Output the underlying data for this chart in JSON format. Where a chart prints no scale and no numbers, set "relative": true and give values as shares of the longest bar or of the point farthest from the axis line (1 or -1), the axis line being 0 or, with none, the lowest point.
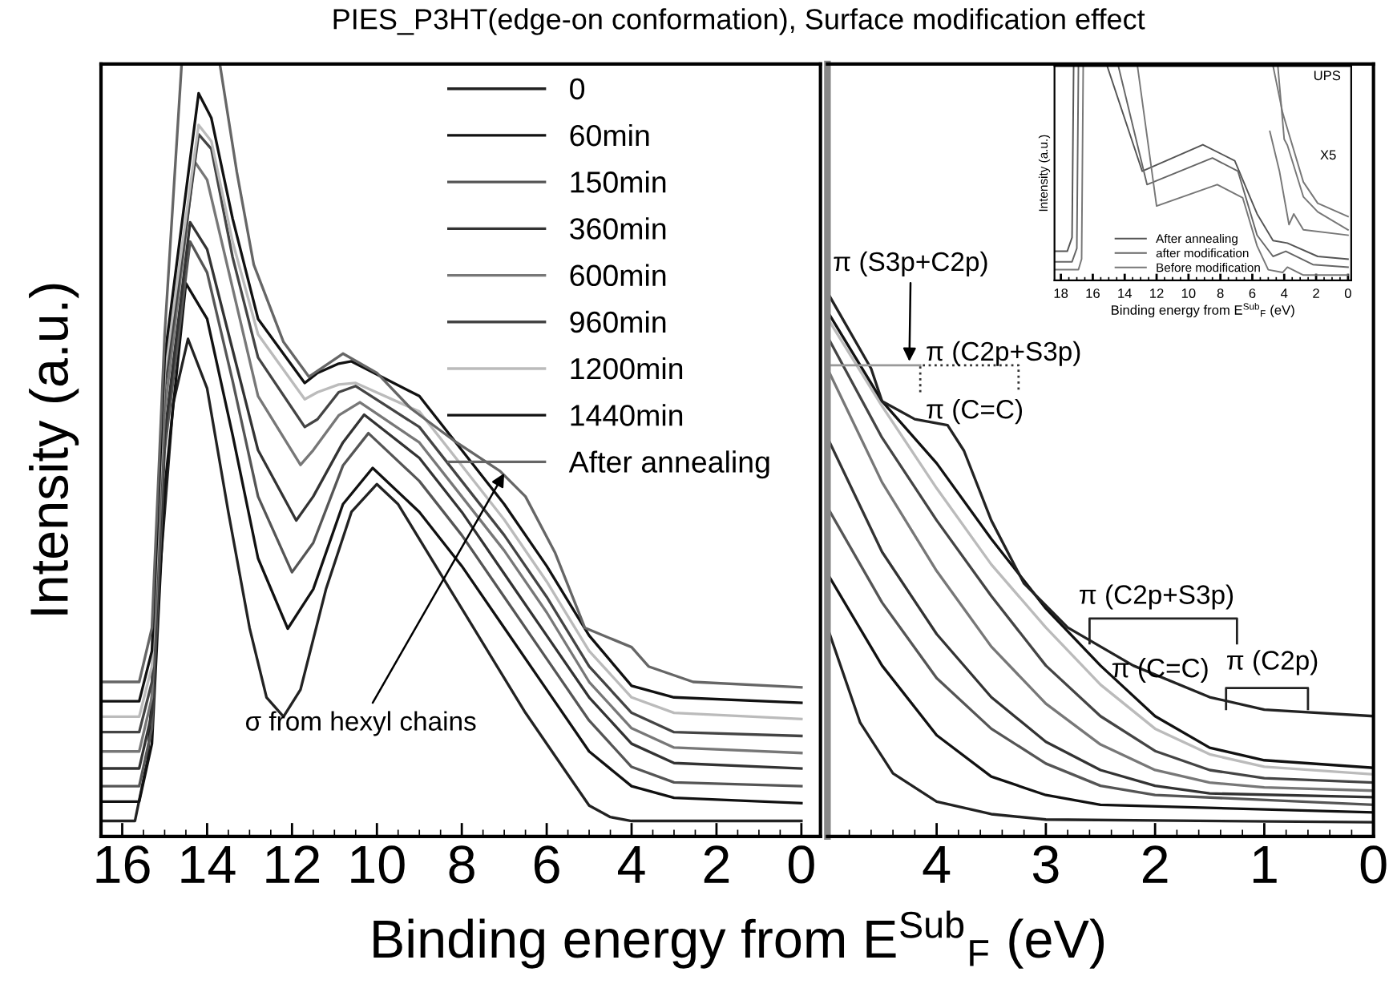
{
  "chart_data": [
    {
      "type": "line",
      "relative": true,
      "title": "PIES_P3HT(edge-on conformation), Surface modification effect",
      "xlabel": "Binding energy from E$^{Sub}$$_{F}$ (eV)",
      "ylabel": "Intensity (a.u.)",
      "xlim": [
        16.5,
        -0.45
      ],
      "xticks": [
        16,
        14,
        12,
        10,
        8,
        6,
        4,
        2,
        0
      ],
      "tick_labels": "x",
      "legend": "top right",
      "grid": false,
      "line_style": "solid",
      "marker": "none",
      "series": [
        {
          "name": "0",
          "color": "#222222",
          "x": [
            16.5,
            15.7,
            15.4,
            15.1,
            14.8,
            14.45,
            14.0,
            13.5,
            13.0,
            12.6,
            12.2,
            11.8,
            11.2,
            10.6,
            10.0,
            9.5,
            8.5,
            7.5,
            6.5,
            5.5,
            5.0,
            4.5,
            4.0,
            0
          ],
          "values": [
            0.02,
            0.02,
            0.1,
            0.35,
            0.56,
            0.644,
            0.58,
            0.42,
            0.27,
            0.18,
            0.155,
            0.19,
            0.32,
            0.42,
            0.456,
            0.43,
            0.34,
            0.25,
            0.16,
            0.08,
            0.04,
            0.025,
            0.02,
            0.02
          ]
        },
        {
          "name": "60min",
          "color": "#111111",
          "x": [
            16.5,
            15.6,
            15.3,
            15.0,
            14.5,
            14.0,
            13.4,
            12.8,
            12.1,
            11.5,
            10.8,
            10.1,
            9.0,
            8.0,
            7.0,
            6.0,
            5.0,
            4.0,
            3.0,
            0
          ],
          "values": [
            0.045,
            0.045,
            0.12,
            0.45,
            0.716,
            0.67,
            0.52,
            0.36,
            0.269,
            0.32,
            0.43,
            0.477,
            0.42,
            0.35,
            0.27,
            0.19,
            0.11,
            0.065,
            0.05,
            0.043
          ]
        },
        {
          "name": "150min",
          "color": "#555555",
          "x": [
            16.5,
            15.6,
            15.3,
            15.0,
            14.4,
            14.0,
            13.4,
            12.8,
            12.0,
            11.5,
            10.8,
            10.2,
            9.0,
            8.0,
            7.0,
            6.0,
            5.0,
            4.0,
            3.0,
            0
          ],
          "values": [
            0.065,
            0.065,
            0.14,
            0.5,
            0.77,
            0.73,
            0.59,
            0.44,
            0.342,
            0.38,
            0.48,
            0.522,
            0.46,
            0.39,
            0.31,
            0.23,
            0.15,
            0.09,
            0.07,
            0.065
          ]
        },
        {
          "name": "360min",
          "color": "#333333",
          "x": [
            16.5,
            15.6,
            15.3,
            15.0,
            14.4,
            14.0,
            13.4,
            12.8,
            11.9,
            11.5,
            10.8,
            10.3,
            9.0,
            8.0,
            7.0,
            6.0,
            5.0,
            4.0,
            3.0,
            0
          ],
          "values": [
            0.088,
            0.088,
            0.16,
            0.52,
            0.795,
            0.76,
            0.63,
            0.5,
            0.409,
            0.44,
            0.51,
            0.546,
            0.49,
            0.42,
            0.34,
            0.26,
            0.18,
            0.12,
            0.095,
            0.088
          ]
        },
        {
          "name": "600min",
          "color": "#777777",
          "x": [
            16.5,
            15.6,
            15.3,
            15.0,
            14.3,
            14.0,
            13.4,
            12.8,
            11.8,
            11.5,
            10.9,
            10.4,
            9.0,
            8.0,
            7.0,
            6.0,
            5.0,
            4.0,
            3.0,
            0
          ],
          "values": [
            0.11,
            0.11,
            0.18,
            0.55,
            0.874,
            0.85,
            0.71,
            0.57,
            0.481,
            0.5,
            0.545,
            0.562,
            0.51,
            0.44,
            0.37,
            0.29,
            0.2,
            0.14,
            0.115,
            0.108
          ]
        },
        {
          "name": "960min",
          "color": "#444444",
          "x": [
            16.5,
            15.6,
            15.3,
            15.0,
            14.2,
            13.9,
            13.4,
            12.8,
            11.7,
            11.4,
            10.9,
            10.5,
            9.0,
            8.0,
            7.0,
            6.0,
            5.0,
            4.0,
            3.0,
            0
          ],
          "values": [
            0.135,
            0.135,
            0.2,
            0.58,
            0.909,
            0.89,
            0.75,
            0.62,
            0.53,
            0.54,
            0.575,
            0.583,
            0.53,
            0.46,
            0.39,
            0.31,
            0.22,
            0.16,
            0.135,
            0.13
          ]
        },
        {
          "name": "1200min",
          "color": "#bbbbbb",
          "x": [
            16.5,
            15.6,
            15.3,
            15.0,
            14.2,
            13.9,
            13.4,
            12.8,
            11.7,
            11.4,
            10.9,
            10.5,
            9.0,
            8.0,
            7.0,
            6.0,
            5.0,
            4.0,
            3.0,
            0
          ],
          "values": [
            0.155,
            0.155,
            0.22,
            0.6,
            0.921,
            0.9,
            0.77,
            0.65,
            0.566,
            0.575,
            0.585,
            0.587,
            0.55,
            0.48,
            0.41,
            0.33,
            0.24,
            0.18,
            0.16,
            0.152
          ]
        },
        {
          "name": "1440min",
          "color": "#111111",
          "x": [
            16.5,
            15.6,
            15.3,
            15.0,
            14.2,
            13.9,
            13.4,
            12.8,
            11.7,
            11.4,
            10.9,
            10.6,
            9.0,
            8.0,
            7.0,
            6.0,
            5.0,
            4.0,
            3.0,
            0
          ],
          "values": [
            0.175,
            0.175,
            0.24,
            0.62,
            0.962,
            0.93,
            0.8,
            0.67,
            0.587,
            0.6,
            0.612,
            0.615,
            0.57,
            0.5,
            0.43,
            0.35,
            0.26,
            0.195,
            0.18,
            0.173
          ]
        },
        {
          "name": "After annealing",
          "color": "#666666",
          "x": [
            16.5,
            15.6,
            15.3,
            15.0,
            14.6,
            14.1,
            13.7,
            13.3,
            12.9,
            12.2,
            11.6,
            10.8,
            10.0,
            9.2,
            8.2,
            7.1,
            6.5,
            5.8,
            5.1,
            4.0,
            3.6,
            2.55,
            0
          ],
          "values": [
            0.2,
            0.2,
            0.27,
            0.65,
            1.0,
            null,
            1.0,
            0.86,
            0.74,
            0.64,
            0.595,
            0.625,
            0.6,
            0.554,
            0.513,
            0.473,
            0.44,
            0.367,
            0.27,
            0.245,
            0.22,
            0.2,
            0.193
          ]
        }
      ],
      "annotations": [
        {
          "text": "σ from hexyl chains",
          "x": 7.0,
          "y": 0.47
        }
      ]
    },
    {
      "type": "line",
      "relative": true,
      "xlim": [
        5,
        0
      ],
      "xticks": [
        4,
        3,
        2,
        1,
        0
      ],
      "tick_labels": "x",
      "legend": false,
      "grid": false,
      "line_style": "solid",
      "marker": "none",
      "series": [
        {
          "color": "#222222",
          "x": [
            5,
            4.7,
            4.4,
            4,
            3.5,
            3,
            0
          ],
          "values": [
            0.384,
            0.209,
            0.116,
            0.064,
            0.041,
            0.031,
            0.026
          ]
        },
        {
          "color": "#111111",
          "x": [
            5,
            4.5,
            4,
            3.5,
            3,
            2.5,
            0
          ],
          "values": [
            0.483,
            0.314,
            0.186,
            0.11,
            0.076,
            0.058,
            0.044
          ]
        },
        {
          "color": "#555555",
          "x": [
            5,
            4.5,
            4,
            3.5,
            3,
            2.5,
            2,
            0
          ],
          "values": [
            0.605,
            0.43,
            0.291,
            0.198,
            0.134,
            0.093,
            0.076,
            0.058
          ]
        },
        {
          "color": "#333333",
          "x": [
            5,
            4.5,
            4,
            3.5,
            3,
            2.5,
            2,
            1.5,
            0
          ],
          "values": [
            0.733,
            0.523,
            0.372,
            0.256,
            0.174,
            0.122,
            0.093,
            0.079,
            0.072
          ]
        },
        {
          "color": "#777777",
          "x": [
            5,
            4.5,
            4,
            3.5,
            3,
            2.5,
            2,
            1.5,
            1,
            0
          ],
          "values": [
            0.86,
            0.651,
            0.488,
            0.349,
            0.244,
            0.169,
            0.122,
            0.099,
            0.09,
            0.084
          ]
        },
        {
          "color": "#444444",
          "x": [
            5,
            4.5,
            4,
            3.5,
            3,
            2.5,
            2,
            1.5,
            1,
            0
          ],
          "values": [
            0.919,
            0.733,
            0.581,
            0.442,
            0.314,
            0.221,
            0.157,
            0.122,
            0.107,
            0.099
          ]
        },
        {
          "color": "#bbbbbb",
          "x": [
            5,
            4.5,
            4,
            3.5,
            3,
            2.5,
            2,
            1.5,
            1,
            0
          ],
          "values": [
            0.953,
            0.791,
            0.64,
            0.5,
            0.384,
            0.279,
            0.198,
            0.151,
            0.128,
            0.114
          ]
        },
        {
          "color": "#111111",
          "x": [
            5,
            4.5,
            4,
            3.5,
            3,
            2.5,
            2,
            1.5,
            1,
            0
          ],
          "values": [
            0.965,
            0.8,
            0.686,
            0.547,
            0.419,
            0.314,
            0.221,
            0.163,
            0.14,
            0.126
          ]
        },
        {
          "color": "#222222",
          "x": [
            5,
            4.6,
            4.5,
            4.2,
            3.9,
            3.75,
            3.5,
            3.2,
            2.8,
            2.2,
            1.5,
            1.0,
            0
          ],
          "values": [
            1.0,
            0.86,
            0.8,
            0.767,
            0.756,
            0.709,
            0.581,
            0.465,
            0.384,
            0.314,
            0.256,
            0.233,
            0.221
          ]
        }
      ],
      "annotations": [
        "π (S3p+C2p)",
        "π (C2p+S3p)",
        "π (C=C)",
        "π (C2p+S3p)",
        "π (C=C)",
        "π (C2p)"
      ]
    },
    {
      "type": "line",
      "relative": true,
      "xlabel": "Binding energy from E$^{Sub}$$_{F}$ (eV)",
      "ylabel": "Intensity (a.u.)",
      "xlim": [
        18.4,
        -0.2
      ],
      "xticks": [
        18,
        16,
        14,
        12,
        10,
        8,
        6,
        4,
        2,
        0
      ],
      "tick_labels": "x",
      "legend": "bottom",
      "grid": false,
      "line_style": "solid",
      "marker": "none",
      "series": [
        {
          "name": "After annealing",
          "color": "#555555",
          "x": [
            18.4,
            17.6,
            17.3,
            17.2,
            null,
            15.1,
            12.9,
            9.1,
            7.1,
            5.7,
            4.7,
            3.8,
            1.9,
            0
          ],
          "values": [
            0.136,
            0.136,
            0.2,
            1.0,
            null,
            1.0,
            0.509,
            0.633,
            0.558,
            0.31,
            0.186,
            0.174,
            0.112,
            0.099
          ]
        },
        {
          "name": "after modification",
          "color": "#666666",
          "x": [
            18.4,
            17.3,
            17.0,
            16.9,
            null,
            14.4,
            12.6,
            8.5,
            6.9,
            5.7,
            4.7,
            3.9,
            2.2,
            0
          ],
          "values": [
            0.087,
            0.087,
            0.15,
            1.0,
            null,
            1.0,
            0.447,
            0.571,
            0.509,
            0.211,
            0.112,
            0.136,
            0.074,
            0.062
          ]
        },
        {
          "name": "Before modification",
          "color": "#777777",
          "x": [
            18.4,
            16.9,
            16.7,
            16.6,
            null,
            13.2,
            12.0,
            8.2,
            6.6,
            5.7,
            5.0,
            4.1,
            3.8,
            2.8,
            0
          ],
          "values": [
            0.05,
            0.05,
            0.1,
            1.0,
            null,
            1.0,
            0.347,
            0.447,
            0.385,
            0.161,
            0.05,
            0.037,
            0.062,
            0.025,
            0.025
          ]
        },
        {
          "color": "#777777",
          "x": [
            4.7,
            4.1,
            3.8,
            2.8,
            1.9,
            0
          ],
          "values": [
            1.0,
            0.782,
            0.707,
            0.459,
            0.36,
            0.298
          ]
        },
        {
          "color": "#777777",
          "x": [
            4.4,
            4.0,
            3.8,
            2.8,
            1.9,
            0
          ],
          "values": [
            1.0,
            0.658,
            0.63,
            0.39,
            0.32,
            0.236
          ]
        },
        {
          "color": "#777777",
          "x": [
            4.9,
            4.3,
            3.7,
            3.4,
            2.8,
            0
          ],
          "values": [
            0.695,
            0.51,
            0.26,
            0.31,
            0.236,
            0.211
          ]
        }
      ],
      "annotations": [
        "UPS",
        "X5"
      ]
    }
  ]
}
